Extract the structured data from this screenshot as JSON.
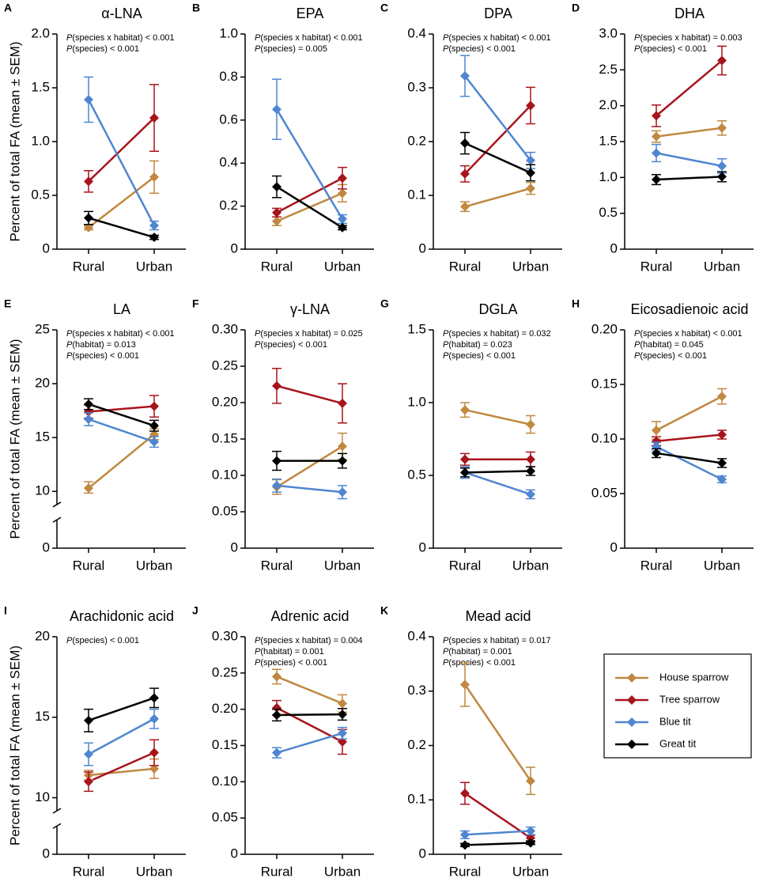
{
  "legend": {
    "position": "lower right",
    "items": [
      {
        "name": "House sparrow",
        "color": "#c08840"
      },
      {
        "name": "Tree sparrow",
        "color": "#a8141c"
      },
      {
        "name": "Blue tit",
        "color": "#4f86d1"
      },
      {
        "name": "Great tit",
        "color": "#000000"
      }
    ]
  },
  "chart_data": [
    {
      "type": "line",
      "panel": "A",
      "title": "α-LNA",
      "ylabel": "Percent of total FA (mean ± SEM)",
      "categories": [
        "Rural",
        "Urban"
      ],
      "annotations": [
        "P(species x habitat) < 0.001",
        "P(species) < 0.001"
      ],
      "ylim": [
        0,
        2
      ],
      "yticks": [
        0,
        0.5,
        {
          "value": 1,
          "label": "1.0"
        },
        1.5,
        {
          "value": 2,
          "label": "2.0"
        }
      ],
      "series": [
        {
          "values": [
            0.2,
            0.67
          ],
          "errors": [
            0.02,
            0.15
          ]
        },
        {
          "values": [
            0.63,
            1.22
          ],
          "errors": [
            0.1,
            0.31
          ]
        },
        {
          "values": [
            1.39,
            0.22
          ],
          "errors": [
            0.21,
            0.04
          ]
        },
        {
          "values": [
            0.29,
            0.11
          ],
          "errors": [
            0.06,
            0.02
          ]
        }
      ]
    },
    {
      "type": "line",
      "panel": "B",
      "title": "EPA",
      "categories": [
        "Rural",
        "Urban"
      ],
      "annotations": [
        "P(species x habitat) < 0.001",
        "P(species) = 0.005"
      ],
      "ylim": [
        0,
        1
      ],
      "yticks": [
        0,
        0.2,
        0.4,
        0.6,
        0.8,
        {
          "value": 1,
          "label": "1.0"
        }
      ],
      "series": [
        {
          "values": [
            0.13,
            0.26
          ],
          "errors": [
            0.02,
            0.04
          ]
        },
        {
          "values": [
            0.17,
            0.33
          ],
          "errors": [
            0.02,
            0.05
          ]
        },
        {
          "values": [
            0.65,
            0.14
          ],
          "errors": [
            0.14,
            0.02
          ]
        },
        {
          "values": [
            0.29,
            0.1
          ],
          "errors": [
            0.05,
            0.01
          ]
        }
      ]
    },
    {
      "type": "line",
      "panel": "C",
      "title": "DPA",
      "categories": [
        "Rural",
        "Urban"
      ],
      "annotations": [
        "P(species x habitat) < 0.001",
        "P(species) < 0.001"
      ],
      "ylim": [
        0,
        0.4
      ],
      "yticks": [
        0,
        0.1,
        0.2,
        0.3,
        0.4
      ],
      "series": [
        {
          "values": [
            0.079,
            0.113
          ],
          "errors": [
            0.009,
            0.011
          ]
        },
        {
          "values": [
            0.14,
            0.267
          ],
          "errors": [
            0.015,
            0.034
          ]
        },
        {
          "values": [
            0.322,
            0.165
          ],
          "errors": [
            0.038,
            0.015
          ]
        },
        {
          "values": [
            0.197,
            0.142
          ],
          "errors": [
            0.02,
            0.015
          ]
        }
      ]
    },
    {
      "type": "line",
      "panel": "D",
      "title": "DHA",
      "categories": [
        "Rural",
        "Urban"
      ],
      "annotations": [
        "P(species x habitat) = 0.003",
        "P(species) < 0.001"
      ],
      "ylim": [
        0,
        3
      ],
      "yticks": [
        0,
        0.5,
        {
          "value": 1,
          "label": "1.0"
        },
        1.5,
        {
          "value": 2,
          "label": "2.0"
        },
        2.5,
        {
          "value": 3,
          "label": "3.0"
        }
      ],
      "series": [
        {
          "values": [
            1.57,
            1.69
          ],
          "errors": [
            0.08,
            0.1
          ]
        },
        {
          "values": [
            1.86,
            2.63
          ],
          "errors": [
            0.15,
            0.2
          ]
        },
        {
          "values": [
            1.34,
            1.16
          ],
          "errors": [
            0.12,
            0.1
          ]
        },
        {
          "values": [
            0.97,
            1.01
          ],
          "errors": [
            0.07,
            0.07
          ]
        }
      ]
    },
    {
      "type": "line",
      "panel": "E",
      "title": "LA",
      "ylabel": "Percent of total FA (mean ± SEM)",
      "categories": [
        "Rural",
        "Urban"
      ],
      "annotations": [
        "P(species x habitat) < 0.001",
        "P(habitat) = 0.013",
        "P(species) < 0.001"
      ],
      "ylim": [
        0,
        25
      ],
      "ybreak": [
        0,
        10
      ],
      "yticks": [
        0,
        10,
        15,
        20,
        25
      ],
      "series": [
        {
          "values": [
            10.3,
            15.3
          ],
          "errors": [
            0.6,
            0.5
          ]
        },
        {
          "values": [
            17.4,
            17.9
          ],
          "errors": [
            0.6,
            1.0
          ]
        },
        {
          "values": [
            16.7,
            14.6
          ],
          "errors": [
            0.6,
            0.5
          ]
        },
        {
          "values": [
            18.1,
            16.1
          ],
          "errors": [
            0.5,
            0.5
          ]
        }
      ]
    },
    {
      "type": "line",
      "panel": "F",
      "title": "γ-LNA",
      "categories": [
        "Rural",
        "Urban"
      ],
      "annotations": [
        "P(species x habitat) = 0.025",
        "P(species) < 0.001"
      ],
      "ylim": [
        0,
        0.3
      ],
      "yticks": [
        0,
        0.05,
        {
          "value": 0.1,
          "label": "0.10"
        },
        0.15,
        {
          "value": 0.2,
          "label": "0.20"
        },
        0.25,
        {
          "value": 0.3,
          "label": "0.30"
        }
      ],
      "series": [
        {
          "values": [
            0.084,
            0.14
          ],
          "errors": [
            0.01,
            0.018
          ]
        },
        {
          "values": [
            0.223,
            0.199
          ],
          "errors": [
            0.024,
            0.027
          ]
        },
        {
          "values": [
            0.086,
            0.077
          ],
          "errors": [
            0.009,
            0.009
          ]
        },
        {
          "values": [
            0.12,
            0.12
          ],
          "errors": [
            0.013,
            0.01
          ]
        }
      ]
    },
    {
      "type": "line",
      "panel": "G",
      "title": "DGLA",
      "categories": [
        "Rural",
        "Urban"
      ],
      "annotations": [
        "P(species x habitat) = 0.032",
        "P(habitat) = 0.023",
        "P(species) < 0.001"
      ],
      "ylim": [
        0,
        1.5
      ],
      "yticks": [
        0,
        0.5,
        {
          "value": 1,
          "label": "1.0"
        },
        1.5
      ],
      "series": [
        {
          "values": [
            0.95,
            0.85
          ],
          "errors": [
            0.05,
            0.06
          ]
        },
        {
          "values": [
            0.61,
            0.61
          ],
          "errors": [
            0.04,
            0.05
          ]
        },
        {
          "values": [
            0.52,
            0.37
          ],
          "errors": [
            0.04,
            0.03
          ]
        },
        {
          "values": [
            0.52,
            0.53
          ],
          "errors": [
            0.03,
            0.03
          ]
        }
      ]
    },
    {
      "type": "line",
      "panel": "H",
      "title": "Eicosadienoic acid",
      "categories": [
        "Rural",
        "Urban"
      ],
      "annotations": [
        "P(species x habitat) < 0.001",
        "P(habitat) = 0.045",
        "P(species) < 0.001"
      ],
      "ylim": [
        0,
        0.2
      ],
      "yticks": [
        0,
        0.05,
        {
          "value": 0.1,
          "label": "0.10"
        },
        0.15,
        {
          "value": 0.2,
          "label": "0.20"
        }
      ],
      "series": [
        {
          "values": [
            0.108,
            0.139
          ],
          "errors": [
            0.008,
            0.007
          ]
        },
        {
          "values": [
            0.098,
            0.104
          ],
          "errors": [
            0.004,
            0.004
          ]
        },
        {
          "values": [
            0.093,
            0.063
          ],
          "errors": [
            0.004,
            0.003
          ]
        },
        {
          "values": [
            0.087,
            0.078
          ],
          "errors": [
            0.004,
            0.004
          ]
        }
      ]
    },
    {
      "type": "line",
      "panel": "I",
      "title": "Arachidonic acid",
      "ylabel": "Percent of total FA (mean ± SEM)",
      "categories": [
        "Rural",
        "Urban"
      ],
      "annotations": [
        "P(species) < 0.001"
      ],
      "ylim": [
        0,
        20
      ],
      "ybreak": [
        0,
        10
      ],
      "yticks": [
        0,
        10,
        15,
        20
      ],
      "series": [
        {
          "values": [
            11.4,
            11.8
          ],
          "errors": [
            0.3,
            0.6
          ]
        },
        {
          "values": [
            11,
            12.8
          ],
          "errors": [
            0.6,
            0.8
          ]
        },
        {
          "values": [
            12.7,
            14.9
          ],
          "errors": [
            0.7,
            0.6
          ]
        },
        {
          "values": [
            14.8,
            16.2
          ],
          "errors": [
            0.7,
            0.6
          ]
        }
      ]
    },
    {
      "type": "line",
      "panel": "J",
      "title": "Adrenic acid",
      "categories": [
        "Rural",
        "Urban"
      ],
      "annotations": [
        "P(species x habitat) = 0.004",
        "P(habitat) = 0.001",
        "P(species) < 0.001"
      ],
      "ylim": [
        0,
        0.3
      ],
      "yticks": [
        0,
        0.05,
        {
          "value": 0.1,
          "label": "0.10"
        },
        0.15,
        {
          "value": 0.2,
          "label": "0.20"
        },
        0.25,
        {
          "value": 0.3,
          "label": "0.30"
        }
      ],
      "series": [
        {
          "values": [
            0.245,
            0.208
          ],
          "errors": [
            0.01,
            0.012
          ]
        },
        {
          "values": [
            0.202,
            0.155
          ],
          "errors": [
            0.01,
            0.017
          ]
        },
        {
          "values": [
            0.14,
            0.167
          ],
          "errors": [
            0.007,
            0.008
          ]
        },
        {
          "values": [
            0.192,
            0.193
          ],
          "errors": [
            0.008,
            0.008
          ]
        }
      ]
    },
    {
      "type": "line",
      "panel": "K",
      "title": "Mead acid",
      "categories": [
        "Rural",
        "Urban"
      ],
      "annotations": [
        "P(species x habitat) = 0.017",
        "P(habitat) = 0.001",
        "P(species) < 0.001"
      ],
      "ylim": [
        0,
        0.4
      ],
      "yticks": [
        0,
        0.1,
        0.2,
        0.3,
        0.4
      ],
      "series": [
        {
          "values": [
            0.312,
            0.135
          ],
          "errors": [
            0.04,
            0.025
          ]
        },
        {
          "values": [
            0.112,
            0.03
          ],
          "errors": [
            0.02,
            0.005
          ]
        },
        {
          "values": [
            0.036,
            0.043
          ],
          "errors": [
            0.007,
            0.007
          ]
        },
        {
          "values": [
            0.017,
            0.021
          ],
          "errors": [
            0.003,
            0.003
          ]
        }
      ]
    }
  ]
}
